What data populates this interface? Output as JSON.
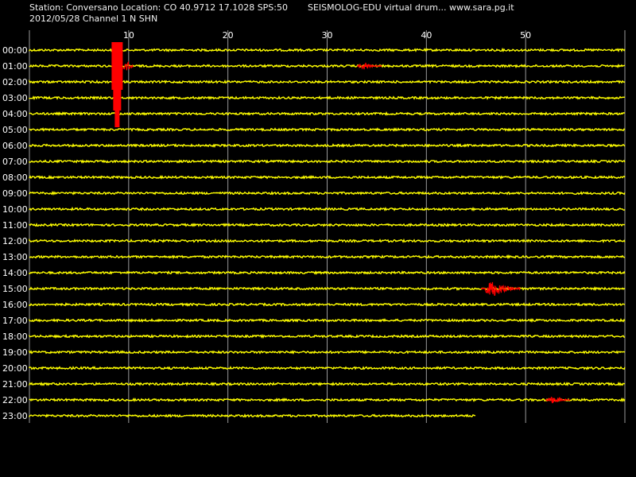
{
  "header": {
    "station_line": "Station: Conversano Location: CO 40.9712 17.1028 SPS:50",
    "title_line": "SEISMOLOG-EDU virtual drum... www.sara.pg.it",
    "date_line": "2012/05/28  Channel 1 N SHN"
  },
  "colors": {
    "background": "#000000",
    "trace": "#ffff00",
    "event": "#ff0000",
    "grid": "#9a9a9a",
    "text": "#ffffff"
  },
  "chart_data": {
    "type": "line",
    "title": "",
    "xlabel": "",
    "ylabel": "",
    "xlim": [
      0,
      60
    ],
    "x_ticks": [
      10,
      20,
      30,
      40,
      50
    ],
    "grid": "vertical lines at each x tick",
    "row_labels": [
      "00:00",
      "01:00",
      "02:00",
      "03:00",
      "04:00",
      "05:00",
      "06:00",
      "07:00",
      "08:00",
      "09:00",
      "10:00",
      "11:00",
      "12:00",
      "13:00",
      "14:00",
      "15:00",
      "16:00",
      "17:00",
      "18:00",
      "19:00",
      "20:00",
      "21:00",
      "22:00",
      "23:00"
    ],
    "last_row_end_minute": 45,
    "events": [
      {
        "row": "00:00",
        "start_minute": 7,
        "end_minute": 10,
        "amplitude": "clipped, spans to 04:00"
      },
      {
        "row": "01:00",
        "start_minute": 33,
        "end_minute": 35.5,
        "amplitude": "small"
      },
      {
        "row": "15:00",
        "start_minute": 45.5,
        "end_minute": 49.5,
        "amplitude": "medium"
      },
      {
        "row": "22:00",
        "start_minute": 52,
        "end_minute": 54.5,
        "amplitude": "small"
      }
    ]
  }
}
